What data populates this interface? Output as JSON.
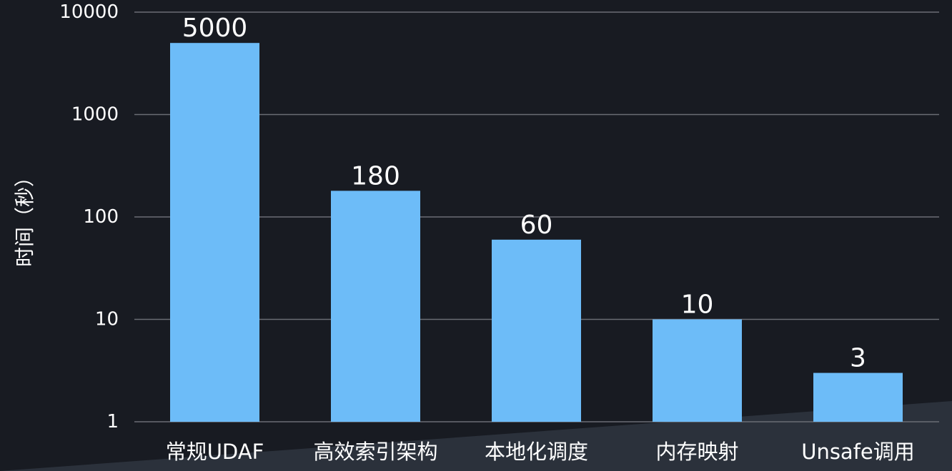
{
  "chart_data": {
    "type": "bar",
    "categories": [
      "常规UDAF",
      "高效索引架构",
      "本地化调度",
      "内存映射",
      "Unsafe调用"
    ],
    "values": [
      5000,
      180,
      60,
      10,
      3
    ],
    "data_labels": [
      "5000",
      "180",
      "60",
      "10",
      "3"
    ],
    "ylabel": "时间（秒）",
    "yscale": "log",
    "ylim": [
      1,
      10000
    ],
    "yticks": [
      1,
      10,
      100,
      1000,
      10000
    ],
    "ytick_labels": [
      "1",
      "10",
      "100",
      "1000",
      "10000"
    ],
    "grid": true,
    "legend": "none"
  },
  "colors": {
    "background": "#181b22",
    "bar": "#6dbcf8",
    "gridline": "#6a6d74",
    "text": "#ffffff",
    "footer_band": "#2b313b"
  }
}
